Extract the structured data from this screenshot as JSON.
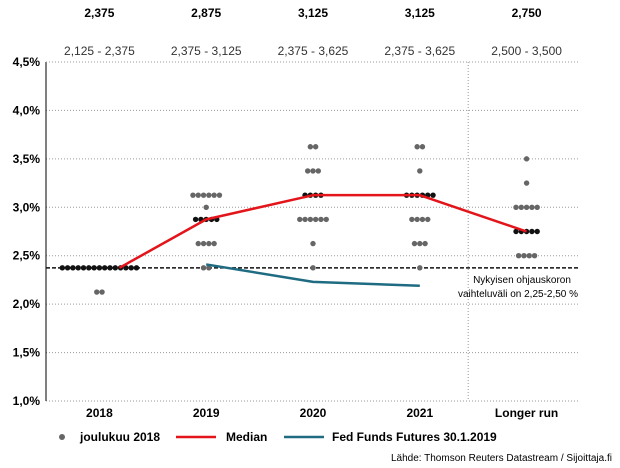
{
  "chart_data": {
    "type": "scatter",
    "categories": [
      "2018",
      "2019",
      "2020",
      "2021",
      "Longer run"
    ],
    "ylim": [
      1.0,
      4.5
    ],
    "yticks": [
      {
        "value": 1.0,
        "label": "1,0%"
      },
      {
        "value": 1.5,
        "label": "1,5%"
      },
      {
        "value": 2.0,
        "label": "2,0%"
      },
      {
        "value": 2.5,
        "label": "2,5%"
      },
      {
        "value": 3.0,
        "label": "3,0%"
      },
      {
        "value": 3.5,
        "label": "3,5%"
      },
      {
        "value": 4.0,
        "label": "4,0%"
      },
      {
        "value": 4.5,
        "label": "4,5%"
      }
    ],
    "grid": true,
    "header": [
      {
        "median": "2,375",
        "range": "2,125 - 2,375"
      },
      {
        "median": "2,875",
        "range": "2,375 - 3,125"
      },
      {
        "median": "3,125",
        "range": "2,375 - 3,625"
      },
      {
        "median": "3,125",
        "range": "2,375 - 3,625"
      },
      {
        "median": "2,750",
        "range": "2,500 - 3,500"
      }
    ],
    "dots": [
      {
        "category": "2018",
        "rows": [
          {
            "value": 2.375,
            "count": 15,
            "median": true
          },
          {
            "value": 2.125,
            "count": 2
          }
        ]
      },
      {
        "category": "2019",
        "rows": [
          {
            "value": 3.125,
            "count": 6
          },
          {
            "value": 3.0,
            "count": 1
          },
          {
            "value": 2.875,
            "count": 5,
            "median": true
          },
          {
            "value": 2.625,
            "count": 4
          },
          {
            "value": 2.375,
            "count": 2
          }
        ]
      },
      {
        "category": "2020",
        "rows": [
          {
            "value": 3.625,
            "count": 2
          },
          {
            "value": 3.375,
            "count": 3
          },
          {
            "value": 3.125,
            "count": 4,
            "median": true
          },
          {
            "value": 2.875,
            "count": 6
          },
          {
            "value": 2.625,
            "count": 1
          },
          {
            "value": 2.375,
            "count": 1
          }
        ]
      },
      {
        "category": "2021",
        "rows": [
          {
            "value": 3.625,
            "count": 2
          },
          {
            "value": 3.375,
            "count": 1
          },
          {
            "value": 3.125,
            "count": 6,
            "median": true
          },
          {
            "value": 2.875,
            "count": 4
          },
          {
            "value": 2.625,
            "count": 3
          },
          {
            "value": 2.375,
            "count": 1
          }
        ]
      },
      {
        "category": "Longer run",
        "rows": [
          {
            "value": 3.5,
            "count": 1
          },
          {
            "value": 3.25,
            "count": 1
          },
          {
            "value": 3.0,
            "count": 5
          },
          {
            "value": 2.75,
            "count": 5,
            "median": true
          },
          {
            "value": 2.5,
            "count": 4
          }
        ]
      }
    ],
    "series": [
      {
        "name": "Median",
        "color": "#e3141a",
        "x": [
          "2018",
          "2019",
          "2020",
          "2021",
          "Longer run"
        ],
        "values": [
          2.375,
          2.875,
          3.125,
          3.125,
          2.75
        ]
      },
      {
        "name": "Fed Funds Futures 30.1.2019",
        "color": "#1e6b82",
        "x": [
          "2019",
          "2020",
          "2021"
        ],
        "values": [
          2.41,
          2.23,
          2.19
        ]
      }
    ],
    "reference_line": {
      "value": 2.375,
      "style": "dashed"
    },
    "annotation": [
      "Nykyisen ohjauskoron",
      "vaihteluväli on 2,25-2,50 %"
    ],
    "legend": [
      {
        "label": "joulukuu 2018",
        "marker": "dot",
        "color": "#666666"
      },
      {
        "label": "Median",
        "marker": "line",
        "color": "#e3141a"
      },
      {
        "label": "Fed Funds Futures 30.1.2019",
        "marker": "line",
        "color": "#1e6b82"
      }
    ],
    "source": "Lähde: Thomson Reuters Datastream / Sijoittaja.fi",
    "colors": {
      "dot": "#666666",
      "median_dot": "#111111"
    }
  }
}
